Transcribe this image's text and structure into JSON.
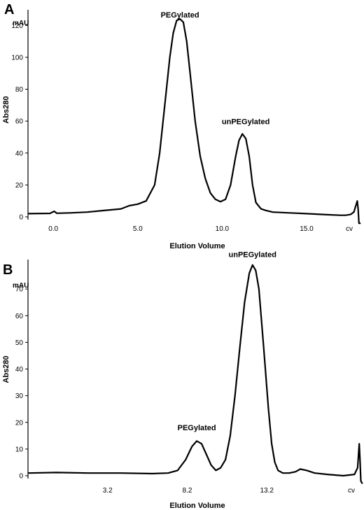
{
  "chart_data": [
    {
      "type": "line",
      "panel_label": "A",
      "unit_label": "mAU",
      "ylabel": "Abs280",
      "xlabel": "Elution Volume",
      "end_tick_label": "cv",
      "xlim": [
        -1.5,
        18.4
      ],
      "ylim": [
        0,
        128
      ],
      "x_ticks": [
        0.0,
        5.0,
        10.0,
        15.0
      ],
      "x_tick_labels": [
        "0.0",
        "5.0",
        "10.0",
        "15.0"
      ],
      "y_ticks": [
        0,
        20,
        40,
        60,
        80,
        100,
        120
      ],
      "y_tick_labels": [
        "0",
        "20",
        "40",
        "60",
        "80",
        "100",
        "120"
      ],
      "grid": false,
      "annotations": [
        {
          "text": "PEGylated",
          "x": 7.5,
          "y": 125
        },
        {
          "text": "unPEGylated",
          "x": 11.4,
          "y": 58
        }
      ],
      "series": [
        {
          "x": [
            -1.5,
            -0.2,
            0.05,
            0.2,
            1.0,
            2.0,
            3.0,
            4.0,
            4.5,
            5.0,
            5.5,
            6.0,
            6.3,
            6.6,
            6.9,
            7.1,
            7.3,
            7.5,
            7.7,
            7.9,
            8.1,
            8.4,
            8.7,
            9.0,
            9.3,
            9.6,
            9.9,
            10.2,
            10.5,
            10.8,
            11.0,
            11.2,
            11.4,
            11.6,
            11.8,
            12.0,
            12.3,
            12.6,
            13.0,
            14.0,
            15.0,
            16.0,
            17.0,
            17.3,
            17.6,
            17.8,
            18.0,
            18.05,
            18.1,
            18.2
          ],
          "y": [
            2,
            2.2,
            3.5,
            2.3,
            2.5,
            3,
            4,
            5,
            7,
            8,
            10,
            20,
            40,
            70,
            100,
            115,
            123,
            124,
            122,
            110,
            90,
            60,
            38,
            24,
            15,
            11,
            9.5,
            11,
            20,
            38,
            48,
            52,
            49,
            38,
            20,
            9,
            5,
            4,
            3,
            2.5,
            2,
            1.5,
            1,
            1,
            1.5,
            3,
            10,
            5,
            -4,
            -4
          ]
        }
      ]
    },
    {
      "type": "line",
      "panel_label": "B",
      "unit_label": "mAU",
      "ylabel": "Abs280",
      "xlabel": "Elution Volume",
      "end_tick_label": "cv",
      "xlim": [
        -1.8,
        19.3
      ],
      "ylim": [
        0,
        80
      ],
      "x_ticks": [
        3.2,
        8.2,
        13.2
      ],
      "x_tick_labels": [
        "3.2",
        "8.2",
        "13.2"
      ],
      "y_ticks": [
        0,
        10,
        20,
        30,
        40,
        50,
        60,
        70
      ],
      "y_tick_labels": [
        "0",
        "10",
        "20",
        "30",
        "40",
        "50",
        "60",
        "70"
      ],
      "grid": false,
      "annotations": [
        {
          "text": "PEGylated",
          "x": 8.8,
          "y": 17
        },
        {
          "text": "unPEGylated",
          "x": 12.3,
          "y": 82
        }
      ],
      "series": [
        {
          "x": [
            -1.8,
            0.0,
            2.0,
            4.0,
            6.0,
            7.0,
            7.6,
            8.1,
            8.5,
            8.8,
            9.1,
            9.4,
            9.7,
            10.0,
            10.3,
            10.6,
            10.9,
            11.2,
            11.5,
            11.8,
            12.1,
            12.3,
            12.5,
            12.7,
            13.0,
            13.3,
            13.5,
            13.7,
            13.9,
            14.2,
            14.6,
            15.0,
            15.3,
            15.7,
            16.2,
            17.0,
            18.0,
            18.7,
            18.9,
            19.0,
            19.05,
            19.1,
            19.2
          ],
          "y": [
            1,
            1.2,
            1,
            1,
            0.8,
            1,
            2,
            6,
            11,
            13,
            12,
            8,
            4,
            2,
            3,
            6,
            15,
            30,
            48,
            65,
            76,
            79,
            77,
            70,
            48,
            25,
            12,
            5,
            2,
            1,
            1,
            1.5,
            2.5,
            2,
            1,
            0.5,
            0,
            0.5,
            3,
            12,
            6,
            -2,
            -3
          ]
        }
      ]
    }
  ]
}
